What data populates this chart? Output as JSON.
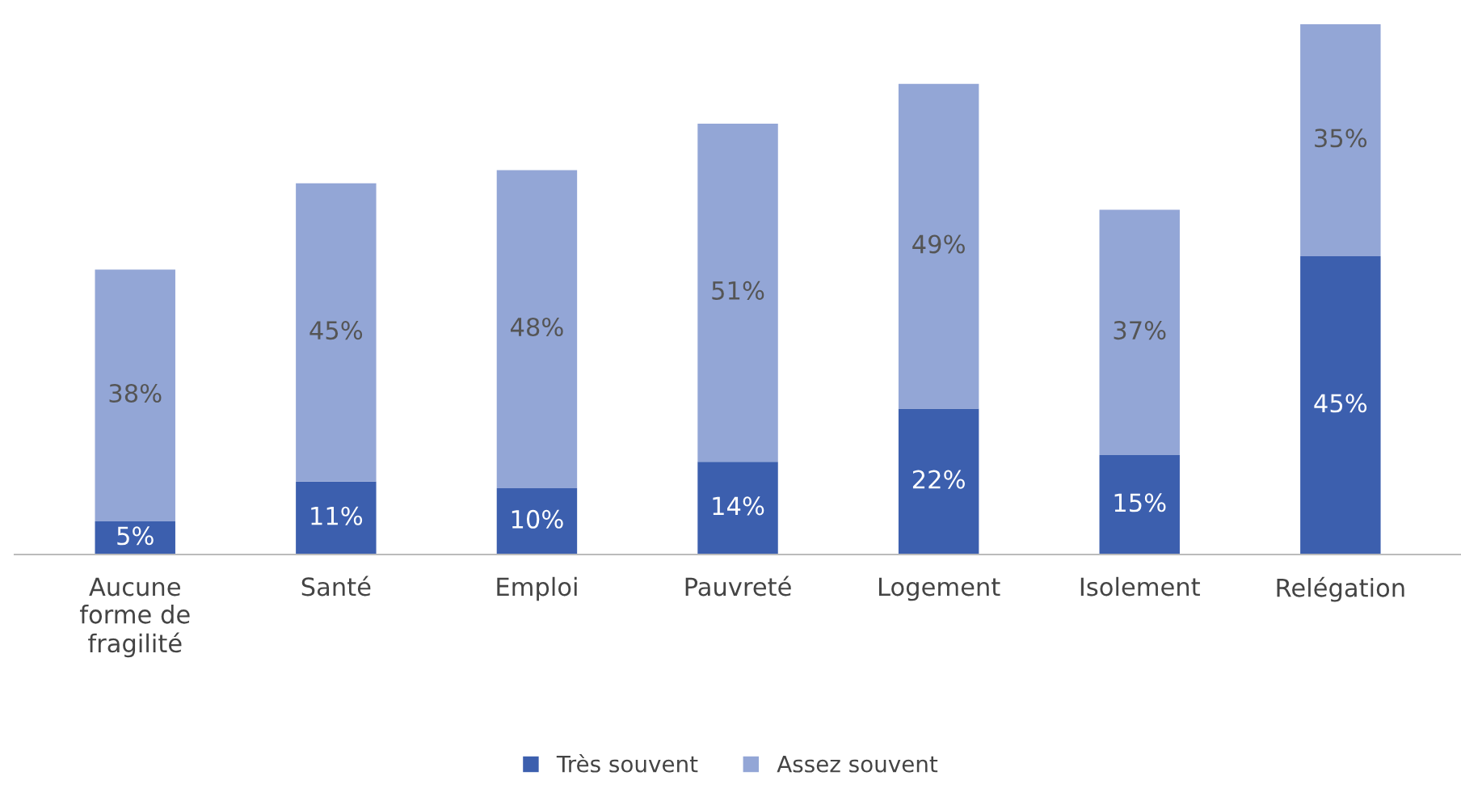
{
  "chart_data": {
    "type": "bar",
    "stacked": true,
    "categories": [
      "Aucune\nforme de\nfragilité",
      "Santé",
      "Emploi",
      "Pauvreté",
      "Logement",
      "Isolement",
      "Relégation"
    ],
    "series": [
      {
        "name": "Très souvent",
        "color": "#3c5fae",
        "values": [
          5,
          11,
          10,
          14,
          22,
          15,
          45
        ],
        "value_labels": [
          "5%",
          "11%",
          "10%",
          "14%",
          "22%",
          "15%",
          "45%"
        ]
      },
      {
        "name": "Assez souvent",
        "color": "#93a6d6",
        "values": [
          38,
          45,
          48,
          51,
          49,
          37,
          35
        ],
        "value_labels": [
          "38%",
          "45%",
          "48%",
          "51%",
          "49%",
          "37%",
          "35%"
        ]
      }
    ],
    "legend": "bottom",
    "grid": false
  }
}
